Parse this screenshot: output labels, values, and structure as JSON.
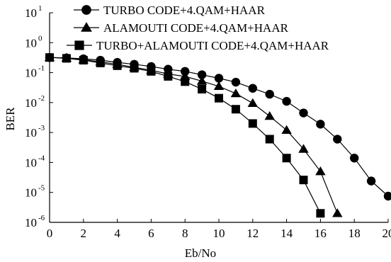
{
  "chart_data": {
    "type": "line",
    "xlabel": "Eb/No",
    "ylabel": "BER",
    "y_scale": "log",
    "xlim": [
      0,
      20
    ],
    "ylim": [
      1e-06,
      10
    ],
    "x_ticks": [
      "0",
      "2",
      "4",
      "6",
      "8",
      "10",
      "12",
      "14",
      "16",
      "18",
      "20"
    ],
    "y_ticks": [
      {
        "base": "10",
        "exp": "1"
      },
      {
        "base": "10",
        "exp": "0"
      },
      {
        "base": "10",
        "exp": "-1"
      },
      {
        "base": "10",
        "exp": "-2"
      },
      {
        "base": "10",
        "exp": "-3"
      },
      {
        "base": "10",
        "exp": "-4"
      },
      {
        "base": "10",
        "exp": "-5"
      },
      {
        "base": "10",
        "exp": "-6"
      }
    ],
    "grid": false,
    "legend_position": "top",
    "series": [
      {
        "name": "TURBO CODE+4.QAM+HAAR",
        "marker": "circle",
        "x": [
          0,
          1,
          2,
          3,
          4,
          5,
          6,
          7,
          8,
          9,
          10,
          11,
          12,
          13,
          14,
          15,
          16,
          17,
          18,
          19,
          20
        ],
        "y": [
          0.32,
          0.31,
          0.29,
          0.26,
          0.22,
          0.19,
          0.16,
          0.13,
          0.11,
          0.085,
          0.065,
          0.048,
          0.03,
          0.019,
          0.011,
          0.0045,
          0.0019,
          0.0006,
          0.00014,
          2.4e-05,
          7.5e-06
        ]
      },
      {
        "name": "ALAMOUTI CODE+4.QAM+HAAR",
        "marker": "triangle",
        "x": [
          0,
          1,
          2,
          3,
          4,
          5,
          6,
          7,
          8,
          9,
          10,
          11,
          12,
          13,
          14,
          15,
          16,
          17
        ],
        "y": [
          0.32,
          0.31,
          0.27,
          0.23,
          0.19,
          0.15,
          0.12,
          0.09,
          0.075,
          0.052,
          0.035,
          0.02,
          0.0095,
          0.0035,
          0.0012,
          0.00028,
          5e-05,
          2e-06
        ]
      },
      {
        "name": "TURBO+ALAMOUTI CODE+4.QAM+HAAR",
        "marker": "square",
        "x": [
          0,
          1,
          2,
          3,
          4,
          5,
          6,
          7,
          8,
          9,
          10,
          11,
          12,
          13,
          14,
          15,
          16
        ],
        "y": [
          0.32,
          0.3,
          0.26,
          0.21,
          0.17,
          0.14,
          0.11,
          0.075,
          0.05,
          0.028,
          0.014,
          0.006,
          0.002,
          0.0006,
          0.00014,
          2.6e-05,
          2e-06
        ]
      }
    ]
  },
  "colors": {
    "line": "#000000",
    "background": "#ffffff"
  }
}
